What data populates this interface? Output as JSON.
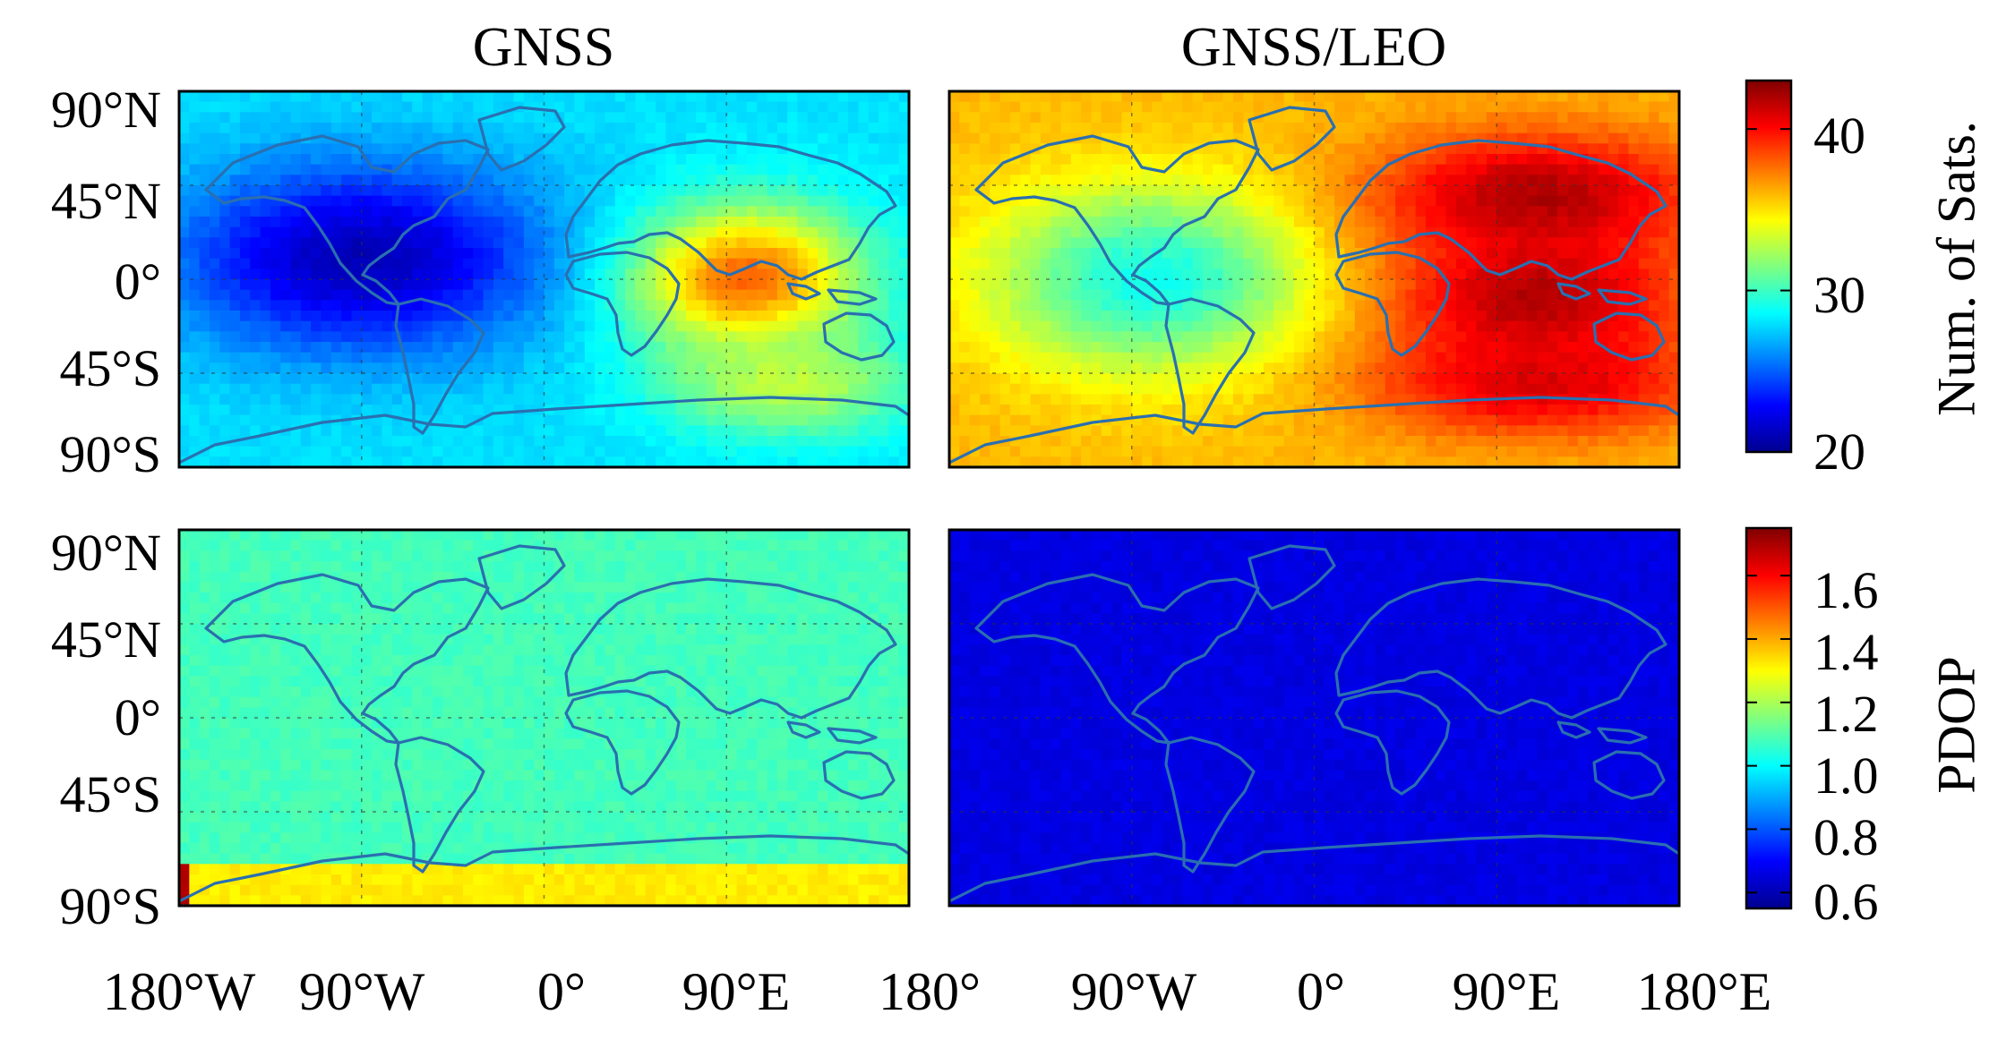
{
  "chart_data": [
    {
      "type": "heatmap",
      "panel": "top-left",
      "title": "GNSS",
      "xlim": [
        -180,
        180
      ],
      "ylim": [
        -90,
        90
      ],
      "colorbar": "Num. of Sats.",
      "clim": [
        20,
        43
      ],
      "hotspots": [
        {
          "lon": -90,
          "lat": 10,
          "value": 21,
          "rx": 90,
          "ry": 45
        },
        {
          "lon": 100,
          "lat": 0,
          "value": 38,
          "rx": 55,
          "ry": 35
        },
        {
          "lon": 120,
          "lat": -50,
          "value": 33,
          "rx": 60,
          "ry": 25
        }
      ],
      "base_value": 28
    },
    {
      "type": "heatmap",
      "panel": "top-right",
      "title": "GNSS/LEO",
      "xlim": [
        -180,
        180
      ],
      "ylim": [
        -90,
        90
      ],
      "colorbar": "Num. of Sats.",
      "clim": [
        20,
        43
      ],
      "hotspots": [
        {
          "lon": -80,
          "lat": 0,
          "value": 29,
          "rx": 80,
          "ry": 45
        },
        {
          "lon": 110,
          "lat": 40,
          "value": 42,
          "rx": 80,
          "ry": 30
        },
        {
          "lon": 110,
          "lat": -10,
          "value": 42,
          "rx": 70,
          "ry": 35
        },
        {
          "lon": 110,
          "lat": -50,
          "value": 41,
          "rx": 80,
          "ry": 25
        }
      ],
      "base_value": 36
    },
    {
      "type": "heatmap",
      "panel": "bottom-left",
      "title": "",
      "xlim": [
        -180,
        180
      ],
      "ylim": [
        -90,
        90
      ],
      "colorbar": "PDOP",
      "clim": [
        0.55,
        1.75
      ],
      "base_value": 1.08,
      "south_band_value": 1.32,
      "corner_value": 1.7
    },
    {
      "type": "heatmap",
      "panel": "bottom-right",
      "title": "",
      "xlim": [
        -180,
        180
      ],
      "ylim": [
        -90,
        90
      ],
      "colorbar": "PDOP",
      "clim": [
        0.55,
        1.75
      ],
      "base_value": 0.66
    }
  ],
  "titles": [
    "GNSS",
    "GNSS/LEO"
  ],
  "y_ticks": [
    "90°N",
    "45°N",
    "0°",
    "45°S",
    "90°S"
  ],
  "x_ticks_left": [
    "180°W",
    "90°W",
    "0°",
    "90°E"
  ],
  "x_tick_middle": "180°",
  "x_ticks_right": [
    "90°W",
    "0°",
    "90°E",
    "180°E"
  ],
  "colorbar_top": {
    "label": "Num. of Sats.",
    "ticks": [
      "40",
      "30",
      "20"
    ],
    "tick_values": [
      40,
      30,
      20
    ]
  },
  "colorbar_bottom": {
    "label": "PDOP",
    "ticks": [
      "1.6",
      "1.4",
      "1.2",
      "1.0",
      "0.8",
      "0.6"
    ],
    "tick_values": [
      1.6,
      1.4,
      1.2,
      1.0,
      0.8,
      0.6
    ]
  },
  "colors": {
    "coast": "#2a6fb0",
    "grid": "#333333"
  }
}
